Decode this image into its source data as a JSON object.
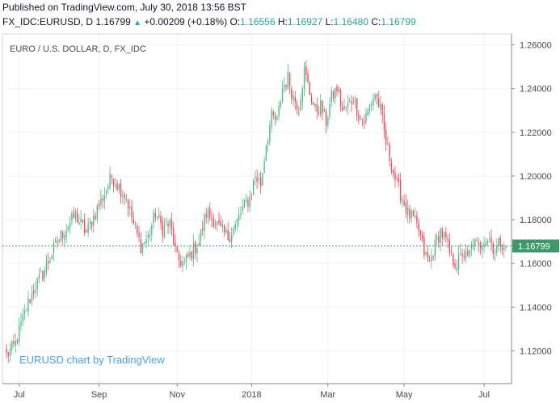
{
  "header": {
    "published": "Published on TradingView.com, July 30, 2018 13:56 BST",
    "symbol": "FX_IDC:EURUSD, D",
    "last": "1.16799",
    "change": "+0.00209 (+0.18%)",
    "o_label": "O:",
    "o_value": "1.16556",
    "h_label": "H:",
    "h_value": "1.16927",
    "l_label": "L:",
    "l_value": "1.16480",
    "c_label": "C:",
    "c_value": "1.16799"
  },
  "colors": {
    "up": "#53b987",
    "down": "#eb4d5c",
    "price_line": "#3c9a6a",
    "grid": "#f0f3fa"
  },
  "chart_data": {
    "type": "candlestick",
    "title": "EURO / U.S. DOLLAR, D, FX_IDC",
    "watermark": "EURUSD chart by TradingView",
    "last_price": 1.16799,
    "last_price_label": "1.16799",
    "ylim": [
      1.105,
      1.265
    ],
    "yticks": [
      1.12,
      1.14,
      1.16,
      1.18,
      1.2,
      1.22,
      1.24,
      1.26
    ],
    "ytick_labels": [
      "1.12000",
      "1.14000",
      "1.16000",
      "1.18000",
      "1.20000",
      "1.22000",
      "1.24000",
      "1.26000"
    ],
    "x_labels": [
      {
        "label": "Jul",
        "bar": 7
      },
      {
        "label": "Sep",
        "bar": 51
      },
      {
        "label": "Nov",
        "bar": 94
      },
      {
        "label": "2018",
        "bar": 135
      },
      {
        "label": "Mar",
        "bar": 177
      },
      {
        "label": "May",
        "bar": 219
      },
      {
        "label": "Jul",
        "bar": 263
      }
    ],
    "series_keypoints": [
      [
        0,
        1.118
      ],
      [
        5,
        1.123
      ],
      [
        8,
        1.132
      ],
      [
        12,
        1.142
      ],
      [
        16,
        1.15
      ],
      [
        20,
        1.155
      ],
      [
        24,
        1.163
      ],
      [
        28,
        1.17
      ],
      [
        34,
        1.178
      ],
      [
        38,
        1.182
      ],
      [
        44,
        1.174
      ],
      [
        50,
        1.185
      ],
      [
        54,
        1.192
      ],
      [
        58,
        1.2
      ],
      [
        62,
        1.195
      ],
      [
        66,
        1.19
      ],
      [
        70,
        1.178
      ],
      [
        74,
        1.168
      ],
      [
        78,
        1.172
      ],
      [
        82,
        1.183
      ],
      [
        86,
        1.176
      ],
      [
        90,
        1.178
      ],
      [
        94,
        1.162
      ],
      [
        98,
        1.16
      ],
      [
        102,
        1.165
      ],
      [
        106,
        1.17
      ],
      [
        110,
        1.183
      ],
      [
        114,
        1.18
      ],
      [
        118,
        1.175
      ],
      [
        122,
        1.172
      ],
      [
        126,
        1.177
      ],
      [
        130,
        1.185
      ],
      [
        134,
        1.19
      ],
      [
        137,
        1.2
      ],
      [
        140,
        1.196
      ],
      [
        143,
        1.215
      ],
      [
        146,
        1.227
      ],
      [
        149,
        1.225
      ],
      [
        152,
        1.24
      ],
      [
        155,
        1.245
      ],
      [
        158,
        1.236
      ],
      [
        161,
        1.232
      ],
      [
        164,
        1.248
      ],
      [
        167,
        1.238
      ],
      [
        170,
        1.23
      ],
      [
        173,
        1.232
      ],
      [
        176,
        1.225
      ],
      [
        179,
        1.236
      ],
      [
        182,
        1.24
      ],
      [
        185,
        1.23
      ],
      [
        188,
        1.232
      ],
      [
        191,
        1.236
      ],
      [
        194,
        1.228
      ],
      [
        197,
        1.225
      ],
      [
        200,
        1.232
      ],
      [
        203,
        1.238
      ],
      [
        206,
        1.23
      ],
      [
        209,
        1.215
      ],
      [
        212,
        1.205
      ],
      [
        215,
        1.196
      ],
      [
        218,
        1.19
      ],
      [
        221,
        1.183
      ],
      [
        224,
        1.18
      ],
      [
        227,
        1.175
      ],
      [
        230,
        1.165
      ],
      [
        233,
        1.16
      ],
      [
        236,
        1.168
      ],
      [
        239,
        1.175
      ],
      [
        242,
        1.17
      ],
      [
        245,
        1.162
      ],
      [
        248,
        1.16
      ],
      [
        251,
        1.165
      ],
      [
        254,
        1.162
      ],
      [
        257,
        1.17
      ],
      [
        260,
        1.167
      ],
      [
        263,
        1.172
      ],
      [
        266,
        1.171
      ],
      [
        269,
        1.166
      ],
      [
        272,
        1.17
      ],
      [
        275,
        1.168
      ]
    ]
  }
}
